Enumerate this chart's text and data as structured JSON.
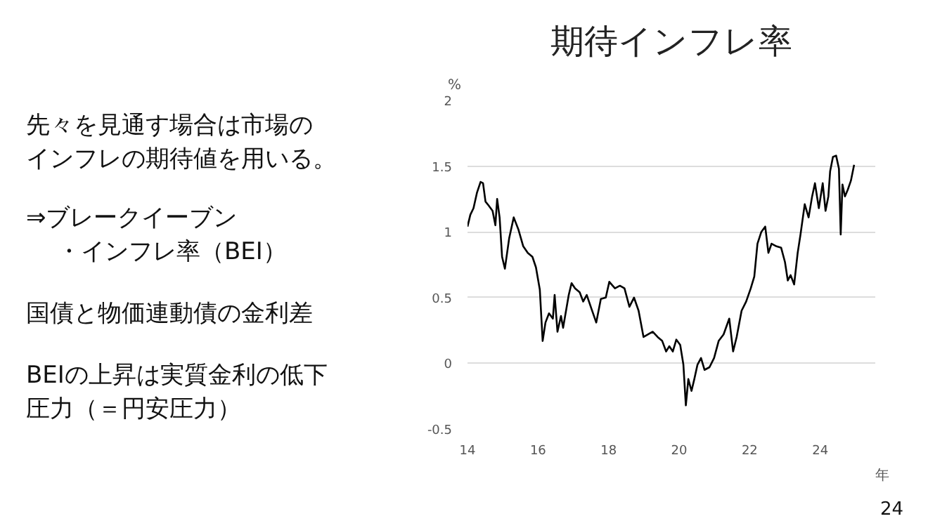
{
  "chart_data": {
    "type": "line",
    "title": "期待インフレ率",
    "xlabel": "年",
    "ylabel": "%",
    "annotations": [
      "先々を見通す場合は市場の",
      "インフレの期待値を用いる。",
      "⇒ブレークイーブン",
      "・インフレ率（BEI）",
      "国債と物価連動債の金利差",
      "BEIの上昇は実質金利の低下",
      "圧力（＝円安圧力）",
      "24"
    ],
    "x": [
      14.0,
      14.08,
      14.17,
      14.27,
      14.37,
      14.44,
      14.51,
      14.6,
      14.71,
      14.79,
      14.84,
      14.91,
      14.98,
      15.06,
      15.18,
      15.31,
      15.44,
      15.58,
      15.71,
      15.84,
      15.94,
      16.05,
      16.13,
      16.21,
      16.31,
      16.42,
      16.47,
      16.55,
      16.65,
      16.71,
      16.78,
      16.87,
      16.95,
      17.05,
      17.18,
      17.28,
      17.38,
      17.52,
      17.65,
      17.78,
      17.92,
      18.02,
      18.18,
      18.32,
      18.45,
      18.59,
      18.72,
      18.85,
      18.99,
      19.12,
      19.25,
      19.39,
      19.52,
      19.63,
      19.72,
      19.82,
      19.92,
      20.03,
      20.12,
      20.19,
      20.26,
      20.35,
      20.43,
      20.52,
      20.62,
      20.72,
      20.86,
      20.99,
      21.12,
      21.26,
      21.42,
      21.53,
      21.63,
      21.77,
      21.9,
      22.03,
      22.13,
      22.22,
      22.33,
      22.44,
      22.53,
      22.62,
      22.76,
      22.89,
      23.0,
      23.08,
      23.16,
      23.26,
      23.36,
      23.44,
      23.56,
      23.67,
      23.77,
      23.85,
      23.96,
      24.07,
      24.15,
      24.23,
      24.28,
      24.36,
      24.45,
      24.53,
      24.58,
      24.63,
      24.7,
      24.78,
      24.87,
      24.96
    ],
    "series": [
      {
        "color": "#000000",
        "values": [
          1.04,
          1.13,
          1.18,
          1.3,
          1.38,
          1.37,
          1.23,
          1.2,
          1.16,
          1.05,
          1.25,
          1.11,
          0.81,
          0.72,
          0.95,
          1.11,
          1.02,
          0.89,
          0.84,
          0.81,
          0.73,
          0.56,
          0.17,
          0.31,
          0.38,
          0.34,
          0.52,
          0.24,
          0.36,
          0.27,
          0.38,
          0.52,
          0.61,
          0.57,
          0.54,
          0.47,
          0.52,
          0.41,
          0.31,
          0.49,
          0.5,
          0.62,
          0.57,
          0.59,
          0.57,
          0.43,
          0.5,
          0.4,
          0.2,
          0.22,
          0.24,
          0.2,
          0.17,
          0.09,
          0.13,
          0.09,
          0.18,
          0.14,
          -0.01,
          -0.32,
          -0.12,
          -0.21,
          -0.12,
          -0.01,
          0.04,
          -0.05,
          -0.03,
          0.04,
          0.17,
          0.22,
          0.34,
          0.09,
          0.2,
          0.4,
          0.47,
          0.57,
          0.66,
          0.91,
          1.0,
          1.04,
          0.84,
          0.91,
          0.89,
          0.88,
          0.77,
          0.63,
          0.67,
          0.6,
          0.84,
          0.98,
          1.21,
          1.11,
          1.27,
          1.37,
          1.18,
          1.37,
          1.16,
          1.27,
          1.46,
          1.57,
          1.58,
          1.48,
          0.98,
          1.36,
          1.27,
          1.32,
          1.39,
          1.51
        ]
      }
    ],
    "xlim": [
      14,
      25.56
    ],
    "xticks": [
      14,
      16,
      18,
      20,
      22,
      24
    ],
    "ylim": [
      -0.5,
      2
    ],
    "yticks": [
      -0.5,
      0,
      0.5,
      1,
      1.5,
      2
    ],
    "grid": "y",
    "marker": "none",
    "line_style": "solid"
  }
}
